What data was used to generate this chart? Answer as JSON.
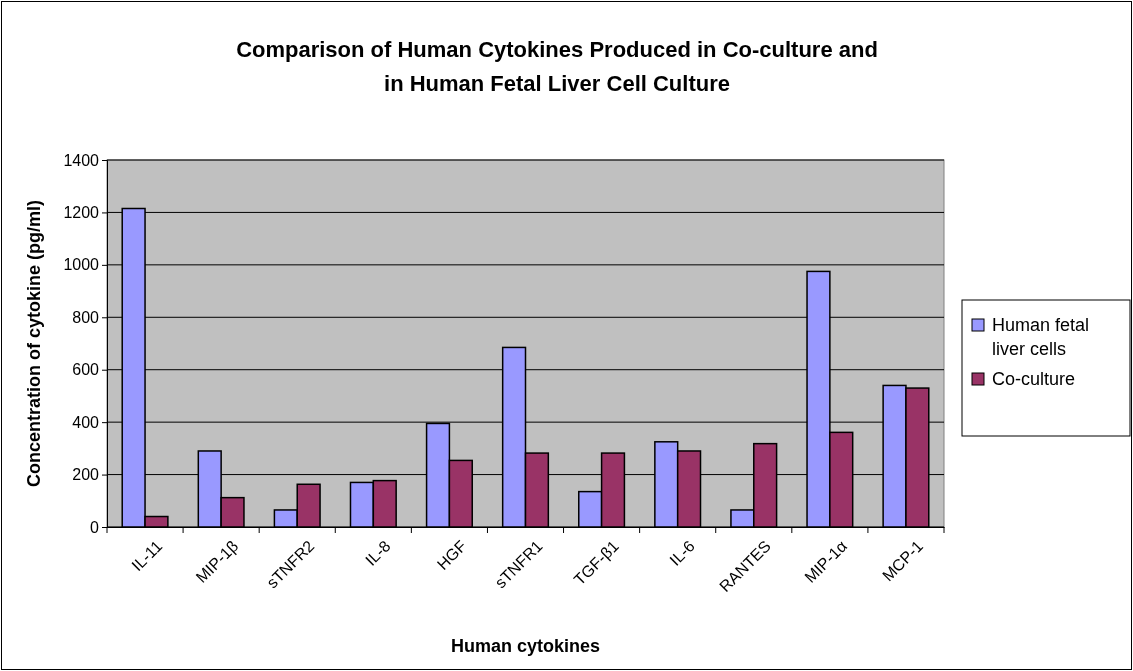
{
  "chart_data": {
    "type": "bar",
    "title": "Comparison of Human Cytokines Produced in Co-culture and in Human Fetal Liver Cell Culture",
    "xlabel": "Human cytokines",
    "ylabel": "Concentration of cytokine (pg/ml)",
    "categories": [
      "IL-11",
      "MIP-1β",
      "sTNFR2",
      "IL-8",
      "HGF",
      "sTNFR1",
      "TGF-β1",
      "IL-6",
      "RANTES",
      "MIP-1α",
      "MCP-1"
    ],
    "series": [
      {
        "name": "Human fetal liver cells",
        "color": "#9999ff",
        "values": [
          1215,
          290,
          65,
          170,
          395,
          685,
          135,
          325,
          65,
          975,
          540
        ]
      },
      {
        "name": "Co-culture",
        "color": "#993366",
        "values": [
          40,
          112,
          163,
          177,
          254,
          282,
          282,
          290,
          318,
          361,
          530
        ]
      }
    ],
    "ylim": [
      0,
      1400
    ],
    "yticks": [
      0,
      200,
      400,
      600,
      800,
      1000,
      1200,
      1400
    ],
    "grid": "y",
    "legend": "right"
  }
}
